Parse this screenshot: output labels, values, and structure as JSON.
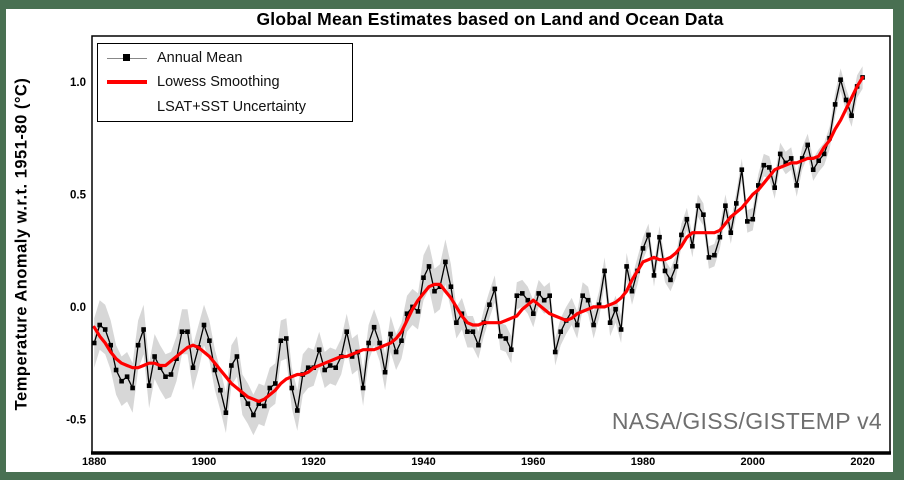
{
  "window": {
    "background_color": "#497052",
    "figure_background": "#ffffff"
  },
  "title": "Global Mean Estimates based on Land and Ocean Data",
  "y_axis_label": "Temperature Anomaly w.r.t. 1951-80 (°C)",
  "watermark": "NASA/GISS/GISTEMP v4",
  "legend": {
    "position": "upper-left",
    "items": [
      {
        "label": "Annual Mean",
        "swatch": "line-with-square-marker",
        "line_color": "#888888",
        "marker_color": "#000000"
      },
      {
        "label": "Lowess Smoothing",
        "swatch": "thick-line",
        "line_color": "#ff0000"
      },
      {
        "label": "LSAT+SST Uncertainty",
        "swatch": "band",
        "band_color": "#d7d7d7"
      }
    ]
  },
  "chart_data": {
    "type": "line",
    "title": "Global Mean Estimates based on Land and Ocean Data",
    "xlabel": "",
    "ylabel": "Temperature Anomaly w.r.t. 1951-80 (°C)",
    "grid": false,
    "legend_position": "upper left",
    "xlim": [
      1879.6,
      2025.0
    ],
    "ylim": [
      -0.649,
      1.204
    ],
    "x_ticks": [
      1880,
      1900,
      1920,
      1940,
      1960,
      1980,
      2000,
      2020
    ],
    "y_ticks": [
      1.0,
      0.5,
      0.0,
      -0.5
    ],
    "y_tick_labels": [
      "1.0",
      "0.5",
      "0.0",
      "-0.5"
    ],
    "year_start": 1880,
    "year_end": 2020,
    "series": [
      {
        "name": "Annual Mean",
        "style": "line-with-square-markers",
        "color": "#000000",
        "values": [
          -0.16,
          -0.08,
          -0.1,
          -0.17,
          -0.28,
          -0.33,
          -0.31,
          -0.36,
          -0.17,
          -0.1,
          -0.35,
          -0.22,
          -0.27,
          -0.31,
          -0.3,
          -0.23,
          -0.11,
          -0.11,
          -0.27,
          -0.18,
          -0.08,
          -0.15,
          -0.28,
          -0.37,
          -0.47,
          -0.26,
          -0.22,
          -0.39,
          -0.43,
          -0.48,
          -0.43,
          -0.44,
          -0.36,
          -0.34,
          -0.15,
          -0.14,
          -0.36,
          -0.46,
          -0.3,
          -0.27,
          -0.27,
          -0.19,
          -0.28,
          -0.26,
          -0.27,
          -0.22,
          -0.11,
          -0.22,
          -0.2,
          -0.36,
          -0.16,
          -0.09,
          -0.16,
          -0.29,
          -0.12,
          -0.2,
          -0.15,
          -0.03,
          0.0,
          -0.02,
          0.13,
          0.18,
          0.07,
          0.09,
          0.2,
          0.09,
          -0.07,
          -0.03,
          -0.11,
          -0.11,
          -0.17,
          -0.07,
          0.01,
          0.08,
          -0.13,
          -0.14,
          -0.19,
          0.05,
          0.06,
          0.03,
          -0.03,
          0.06,
          0.03,
          0.05,
          -0.2,
          -0.11,
          -0.06,
          -0.02,
          -0.08,
          0.05,
          0.03,
          -0.08,
          0.01,
          0.16,
          -0.07,
          -0.01,
          -0.1,
          0.18,
          0.07,
          0.16,
          0.26,
          0.32,
          0.14,
          0.31,
          0.16,
          0.12,
          0.18,
          0.32,
          0.39,
          0.27,
          0.45,
          0.41,
          0.22,
          0.23,
          0.31,
          0.45,
          0.33,
          0.46,
          0.61,
          0.38,
          0.39,
          0.54,
          0.63,
          0.62,
          0.53,
          0.68,
          0.64,
          0.66,
          0.54,
          0.66,
          0.72,
          0.61,
          0.65,
          0.68,
          0.75,
          0.9,
          1.01,
          0.92,
          0.85,
          0.98,
          1.02
        ]
      },
      {
        "name": "Lowess Smoothing",
        "style": "thick-line",
        "color": "#ff0000",
        "values": [
          -0.09,
          -0.13,
          -0.16,
          -0.2,
          -0.23,
          -0.25,
          -0.26,
          -0.27,
          -0.27,
          -0.26,
          -0.25,
          -0.25,
          -0.26,
          -0.26,
          -0.24,
          -0.22,
          -0.2,
          -0.18,
          -0.17,
          -0.18,
          -0.2,
          -0.22,
          -0.25,
          -0.28,
          -0.31,
          -0.34,
          -0.36,
          -0.38,
          -0.4,
          -0.41,
          -0.42,
          -0.41,
          -0.39,
          -0.37,
          -0.34,
          -0.32,
          -0.31,
          -0.3,
          -0.3,
          -0.29,
          -0.27,
          -0.26,
          -0.25,
          -0.24,
          -0.23,
          -0.22,
          -0.22,
          -0.21,
          -0.2,
          -0.19,
          -0.19,
          -0.19,
          -0.18,
          -0.17,
          -0.16,
          -0.14,
          -0.11,
          -0.06,
          -0.01,
          0.03,
          0.06,
          0.09,
          0.1,
          0.1,
          0.07,
          0.04,
          0.0,
          -0.04,
          -0.07,
          -0.08,
          -0.08,
          -0.07,
          -0.07,
          -0.07,
          -0.07,
          -0.06,
          -0.05,
          -0.04,
          -0.01,
          0.01,
          0.03,
          0.01,
          -0.01,
          -0.03,
          -0.04,
          -0.05,
          -0.06,
          -0.05,
          -0.03,
          -0.02,
          -0.01,
          0.0,
          0.0,
          0.0,
          0.01,
          0.02,
          0.04,
          0.07,
          0.12,
          0.16,
          0.2,
          0.21,
          0.22,
          0.21,
          0.21,
          0.22,
          0.24,
          0.27,
          0.31,
          0.33,
          0.33,
          0.33,
          0.33,
          0.33,
          0.34,
          0.37,
          0.4,
          0.42,
          0.44,
          0.47,
          0.5,
          0.52,
          0.55,
          0.58,
          0.61,
          0.62,
          0.63,
          0.64,
          0.64,
          0.65,
          0.66,
          0.66,
          0.67,
          0.71,
          0.74,
          0.79,
          0.83,
          0.88,
          0.93,
          0.98,
          1.02
        ]
      },
      {
        "name": "LSAT+SST Uncertainty",
        "style": "band-around-annual-mean",
        "color": "#d7d7d7",
        "half_width": [
          0.11,
          0.11,
          0.11,
          0.11,
          0.11,
          0.11,
          0.11,
          0.11,
          0.11,
          0.11,
          0.1,
          0.1,
          0.1,
          0.1,
          0.1,
          0.1,
          0.1,
          0.1,
          0.1,
          0.1,
          0.09,
          0.09,
          0.09,
          0.09,
          0.09,
          0.09,
          0.09,
          0.09,
          0.09,
          0.09,
          0.09,
          0.09,
          0.09,
          0.09,
          0.09,
          0.09,
          0.09,
          0.09,
          0.09,
          0.09,
          0.08,
          0.08,
          0.08,
          0.08,
          0.08,
          0.08,
          0.08,
          0.08,
          0.08,
          0.08,
          0.08,
          0.08,
          0.08,
          0.08,
          0.08,
          0.08,
          0.08,
          0.08,
          0.08,
          0.08,
          0.1,
          0.1,
          0.1,
          0.1,
          0.1,
          0.1,
          0.07,
          0.07,
          0.07,
          0.07,
          0.06,
          0.06,
          0.06,
          0.06,
          0.06,
          0.06,
          0.06,
          0.06,
          0.06,
          0.06,
          0.06,
          0.06,
          0.06,
          0.06,
          0.06,
          0.06,
          0.06,
          0.06,
          0.06,
          0.06,
          0.06,
          0.06,
          0.06,
          0.06,
          0.06,
          0.06,
          0.06,
          0.06,
          0.06,
          0.06,
          0.05,
          0.05,
          0.05,
          0.05,
          0.05,
          0.05,
          0.05,
          0.05,
          0.05,
          0.05,
          0.05,
          0.05,
          0.05,
          0.05,
          0.05,
          0.05,
          0.05,
          0.05,
          0.05,
          0.05,
          0.05,
          0.05,
          0.05,
          0.05,
          0.05,
          0.05,
          0.05,
          0.05,
          0.05,
          0.05,
          0.05,
          0.05,
          0.05,
          0.05,
          0.05,
          0.05,
          0.05,
          0.05,
          0.05,
          0.05,
          0.05
        ]
      }
    ]
  }
}
